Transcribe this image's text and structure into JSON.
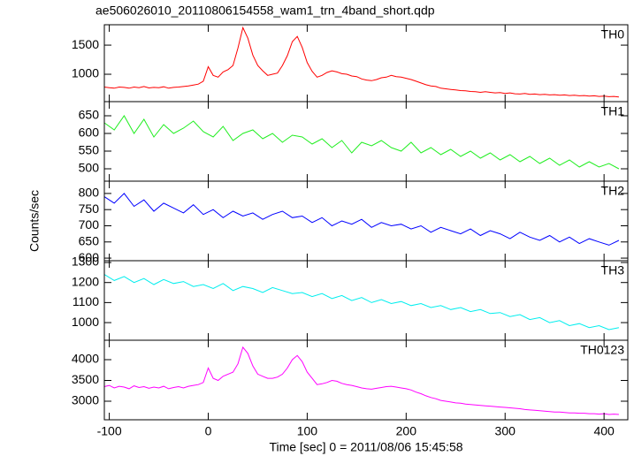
{
  "chart_data": [
    {
      "type": "line",
      "title": "ae506026010_20110806154558_wam1_trn_4band_short.qdp",
      "x": [
        -105,
        -100,
        -95,
        -90,
        -85,
        -80,
        -75,
        -70,
        -65,
        -60,
        -55,
        -50,
        -45,
        -40,
        -35,
        -30,
        -25,
        -20,
        -15,
        -10,
        -5,
        0,
        5,
        10,
        15,
        20,
        25,
        30,
        35,
        40,
        45,
        50,
        55,
        60,
        65,
        70,
        75,
        80,
        85,
        90,
        95,
        100,
        105,
        110,
        115,
        120,
        125,
        130,
        135,
        140,
        145,
        150,
        155,
        160,
        165,
        170,
        175,
        180,
        185,
        190,
        195,
        200,
        205,
        210,
        215,
        220,
        225,
        230,
        235,
        240,
        245,
        250,
        255,
        260,
        265,
        270,
        275,
        280,
        285,
        290,
        295,
        300,
        305,
        310,
        315,
        320,
        325,
        330,
        335,
        340,
        345,
        350,
        355,
        360,
        365,
        370,
        375,
        380,
        385,
        390,
        395,
        400,
        405,
        410,
        415
      ],
      "series": [
        {
          "name": "TH0",
          "color": "#ff0000",
          "values": [
            780,
            770,
            760,
            780,
            775,
            760,
            780,
            770,
            790,
            765,
            775,
            770,
            785,
            760,
            775,
            780,
            790,
            800,
            815,
            830,
            880,
            1130,
            980,
            950,
            1040,
            1080,
            1150,
            1450,
            1800,
            1620,
            1330,
            1150,
            1060,
            980,
            1000,
            1020,
            1150,
            1320,
            1560,
            1650,
            1460,
            1200,
            1050,
            950,
            980,
            1030,
            1060,
            1040,
            1010,
            1000,
            970,
            960,
            920,
            900,
            890,
            910,
            940,
            950,
            980,
            960,
            950,
            930,
            910,
            880,
            850,
            820,
            800,
            790,
            760,
            750,
            740,
            730,
            720,
            715,
            705,
            700,
            690,
            700,
            690,
            680,
            685,
            670,
            680,
            665,
            660,
            670,
            655,
            660,
            650,
            655,
            645,
            650,
            640,
            645,
            635,
            640,
            630,
            635,
            625,
            630,
            620,
            625,
            615,
            620,
            610
          ]
        }
      ],
      "xlim": [
        -105,
        424
      ],
      "ylim": [
        530,
        1850
      ],
      "yticks": [
        1000,
        1500
      ]
    },
    {
      "type": "line",
      "x": [
        -105,
        -95,
        -85,
        -75,
        -65,
        -55,
        -45,
        -35,
        -25,
        -15,
        -5,
        5,
        15,
        25,
        35,
        45,
        55,
        65,
        75,
        85,
        95,
        105,
        115,
        125,
        135,
        145,
        155,
        165,
        175,
        185,
        195,
        205,
        215,
        225,
        235,
        245,
        255,
        265,
        275,
        285,
        295,
        305,
        315,
        325,
        335,
        345,
        355,
        365,
        375,
        385,
        395,
        405,
        415
      ],
      "series": [
        {
          "name": "TH1",
          "color": "#22ee22",
          "values": [
            630,
            610,
            650,
            600,
            640,
            590,
            625,
            600,
            615,
            635,
            605,
            590,
            620,
            580,
            600,
            610,
            585,
            600,
            575,
            595,
            590,
            570,
            585,
            560,
            580,
            545,
            575,
            565,
            580,
            560,
            550,
            575,
            545,
            560,
            540,
            555,
            535,
            550,
            530,
            545,
            525,
            540,
            520,
            535,
            515,
            530,
            510,
            525,
            505,
            520,
            505,
            515,
            500
          ]
        }
      ],
      "xlim": [
        -105,
        424
      ],
      "ylim": [
        465,
        690
      ],
      "yticks": [
        500,
        550,
        600,
        650
      ]
    },
    {
      "type": "line",
      "ylabel": "Counts/sec",
      "x": [
        -105,
        -95,
        -85,
        -75,
        -65,
        -55,
        -45,
        -35,
        -25,
        -15,
        -5,
        5,
        15,
        25,
        35,
        45,
        55,
        65,
        75,
        85,
        95,
        105,
        115,
        125,
        135,
        145,
        155,
        165,
        175,
        185,
        195,
        205,
        215,
        225,
        235,
        245,
        255,
        265,
        275,
        285,
        295,
        305,
        315,
        325,
        335,
        345,
        355,
        365,
        375,
        385,
        395,
        405,
        415
      ],
      "series": [
        {
          "name": "TH2",
          "color": "#0000ff",
          "values": [
            790,
            770,
            800,
            760,
            780,
            745,
            770,
            755,
            740,
            765,
            735,
            750,
            725,
            745,
            730,
            740,
            720,
            735,
            745,
            725,
            730,
            710,
            725,
            700,
            715,
            705,
            720,
            695,
            710,
            700,
            705,
            690,
            700,
            680,
            695,
            685,
            675,
            690,
            670,
            685,
            675,
            660,
            680,
            665,
            655,
            670,
            650,
            665,
            645,
            660,
            650,
            640,
            655
          ]
        }
      ],
      "xlim": [
        -105,
        424
      ],
      "ylim": [
        592,
        838
      ],
      "yticks": [
        600,
        650,
        700,
        750,
        800
      ]
    },
    {
      "type": "line",
      "x": [
        -105,
        -95,
        -85,
        -75,
        -65,
        -55,
        -45,
        -35,
        -25,
        -15,
        -5,
        5,
        15,
        25,
        35,
        45,
        55,
        65,
        75,
        85,
        95,
        105,
        115,
        125,
        135,
        145,
        155,
        165,
        175,
        185,
        195,
        205,
        215,
        225,
        235,
        245,
        255,
        265,
        275,
        285,
        295,
        305,
        315,
        325,
        335,
        345,
        355,
        365,
        375,
        385,
        395,
        405,
        415
      ],
      "series": [
        {
          "name": "TH3",
          "color": "#00eeee",
          "values": [
            1240,
            1210,
            1230,
            1200,
            1220,
            1190,
            1215,
            1195,
            1205,
            1180,
            1190,
            1170,
            1195,
            1160,
            1180,
            1170,
            1150,
            1175,
            1160,
            1145,
            1150,
            1130,
            1145,
            1120,
            1135,
            1110,
            1125,
            1100,
            1115,
            1095,
            1105,
            1085,
            1095,
            1075,
            1085,
            1065,
            1075,
            1055,
            1065,
            1045,
            1050,
            1030,
            1040,
            1015,
            1025,
            1000,
            1010,
            985,
            995,
            975,
            985,
            965,
            975
          ]
        }
      ],
      "xlim": [
        -105,
        424
      ],
      "ylim": [
        912,
        1309
      ],
      "yticks": [
        1000,
        1100,
        1200,
        1300
      ]
    },
    {
      "type": "line",
      "xlabel": "Time [sec] 0 = 2011/08/06 15:45:58",
      "x": [
        -105,
        -100,
        -95,
        -90,
        -85,
        -80,
        -75,
        -70,
        -65,
        -60,
        -55,
        -50,
        -45,
        -40,
        -35,
        -30,
        -25,
        -20,
        -15,
        -10,
        -5,
        0,
        5,
        10,
        15,
        20,
        25,
        30,
        35,
        40,
        45,
        50,
        55,
        60,
        65,
        70,
        75,
        80,
        85,
        90,
        95,
        100,
        105,
        110,
        115,
        120,
        125,
        130,
        135,
        140,
        145,
        150,
        155,
        160,
        165,
        170,
        175,
        180,
        185,
        190,
        195,
        200,
        205,
        210,
        215,
        220,
        225,
        230,
        235,
        240,
        245,
        250,
        255,
        260,
        265,
        270,
        275,
        280,
        285,
        290,
        295,
        300,
        305,
        310,
        315,
        320,
        325,
        330,
        335,
        340,
        345,
        350,
        355,
        360,
        365,
        370,
        375,
        380,
        385,
        390,
        395,
        400,
        405,
        410,
        415
      ],
      "series": [
        {
          "name": "TH0123",
          "color": "#ff00ff",
          "values": [
            3350,
            3380,
            3320,
            3360,
            3340,
            3300,
            3370,
            3330,
            3350,
            3310,
            3340,
            3320,
            3360,
            3300,
            3330,
            3350,
            3320,
            3360,
            3380,
            3400,
            3450,
            3800,
            3550,
            3500,
            3600,
            3650,
            3700,
            3900,
            4300,
            4150,
            3850,
            3650,
            3600,
            3550,
            3550,
            3580,
            3650,
            3800,
            4000,
            4100,
            3950,
            3700,
            3550,
            3400,
            3420,
            3450,
            3500,
            3480,
            3430,
            3400,
            3380,
            3350,
            3320,
            3300,
            3290,
            3310,
            3330,
            3350,
            3360,
            3340,
            3320,
            3300,
            3270,
            3220,
            3180,
            3130,
            3090,
            3060,
            3020,
            3000,
            2980,
            2960,
            2950,
            2930,
            2920,
            2910,
            2900,
            2890,
            2880,
            2870,
            2860,
            2850,
            2840,
            2830,
            2820,
            2800,
            2790,
            2780,
            2770,
            2760,
            2750,
            2740,
            2740,
            2730,
            2720,
            2720,
            2710,
            2710,
            2700,
            2700,
            2690,
            2700,
            2680,
            2690,
            2680
          ]
        }
      ],
      "xlim": [
        -105,
        424
      ],
      "ylim": [
        2553,
        4468
      ],
      "yticks": [
        3000,
        3500,
        4000
      ],
      "xticks": [
        -100,
        0,
        100,
        200,
        300,
        400
      ]
    }
  ]
}
